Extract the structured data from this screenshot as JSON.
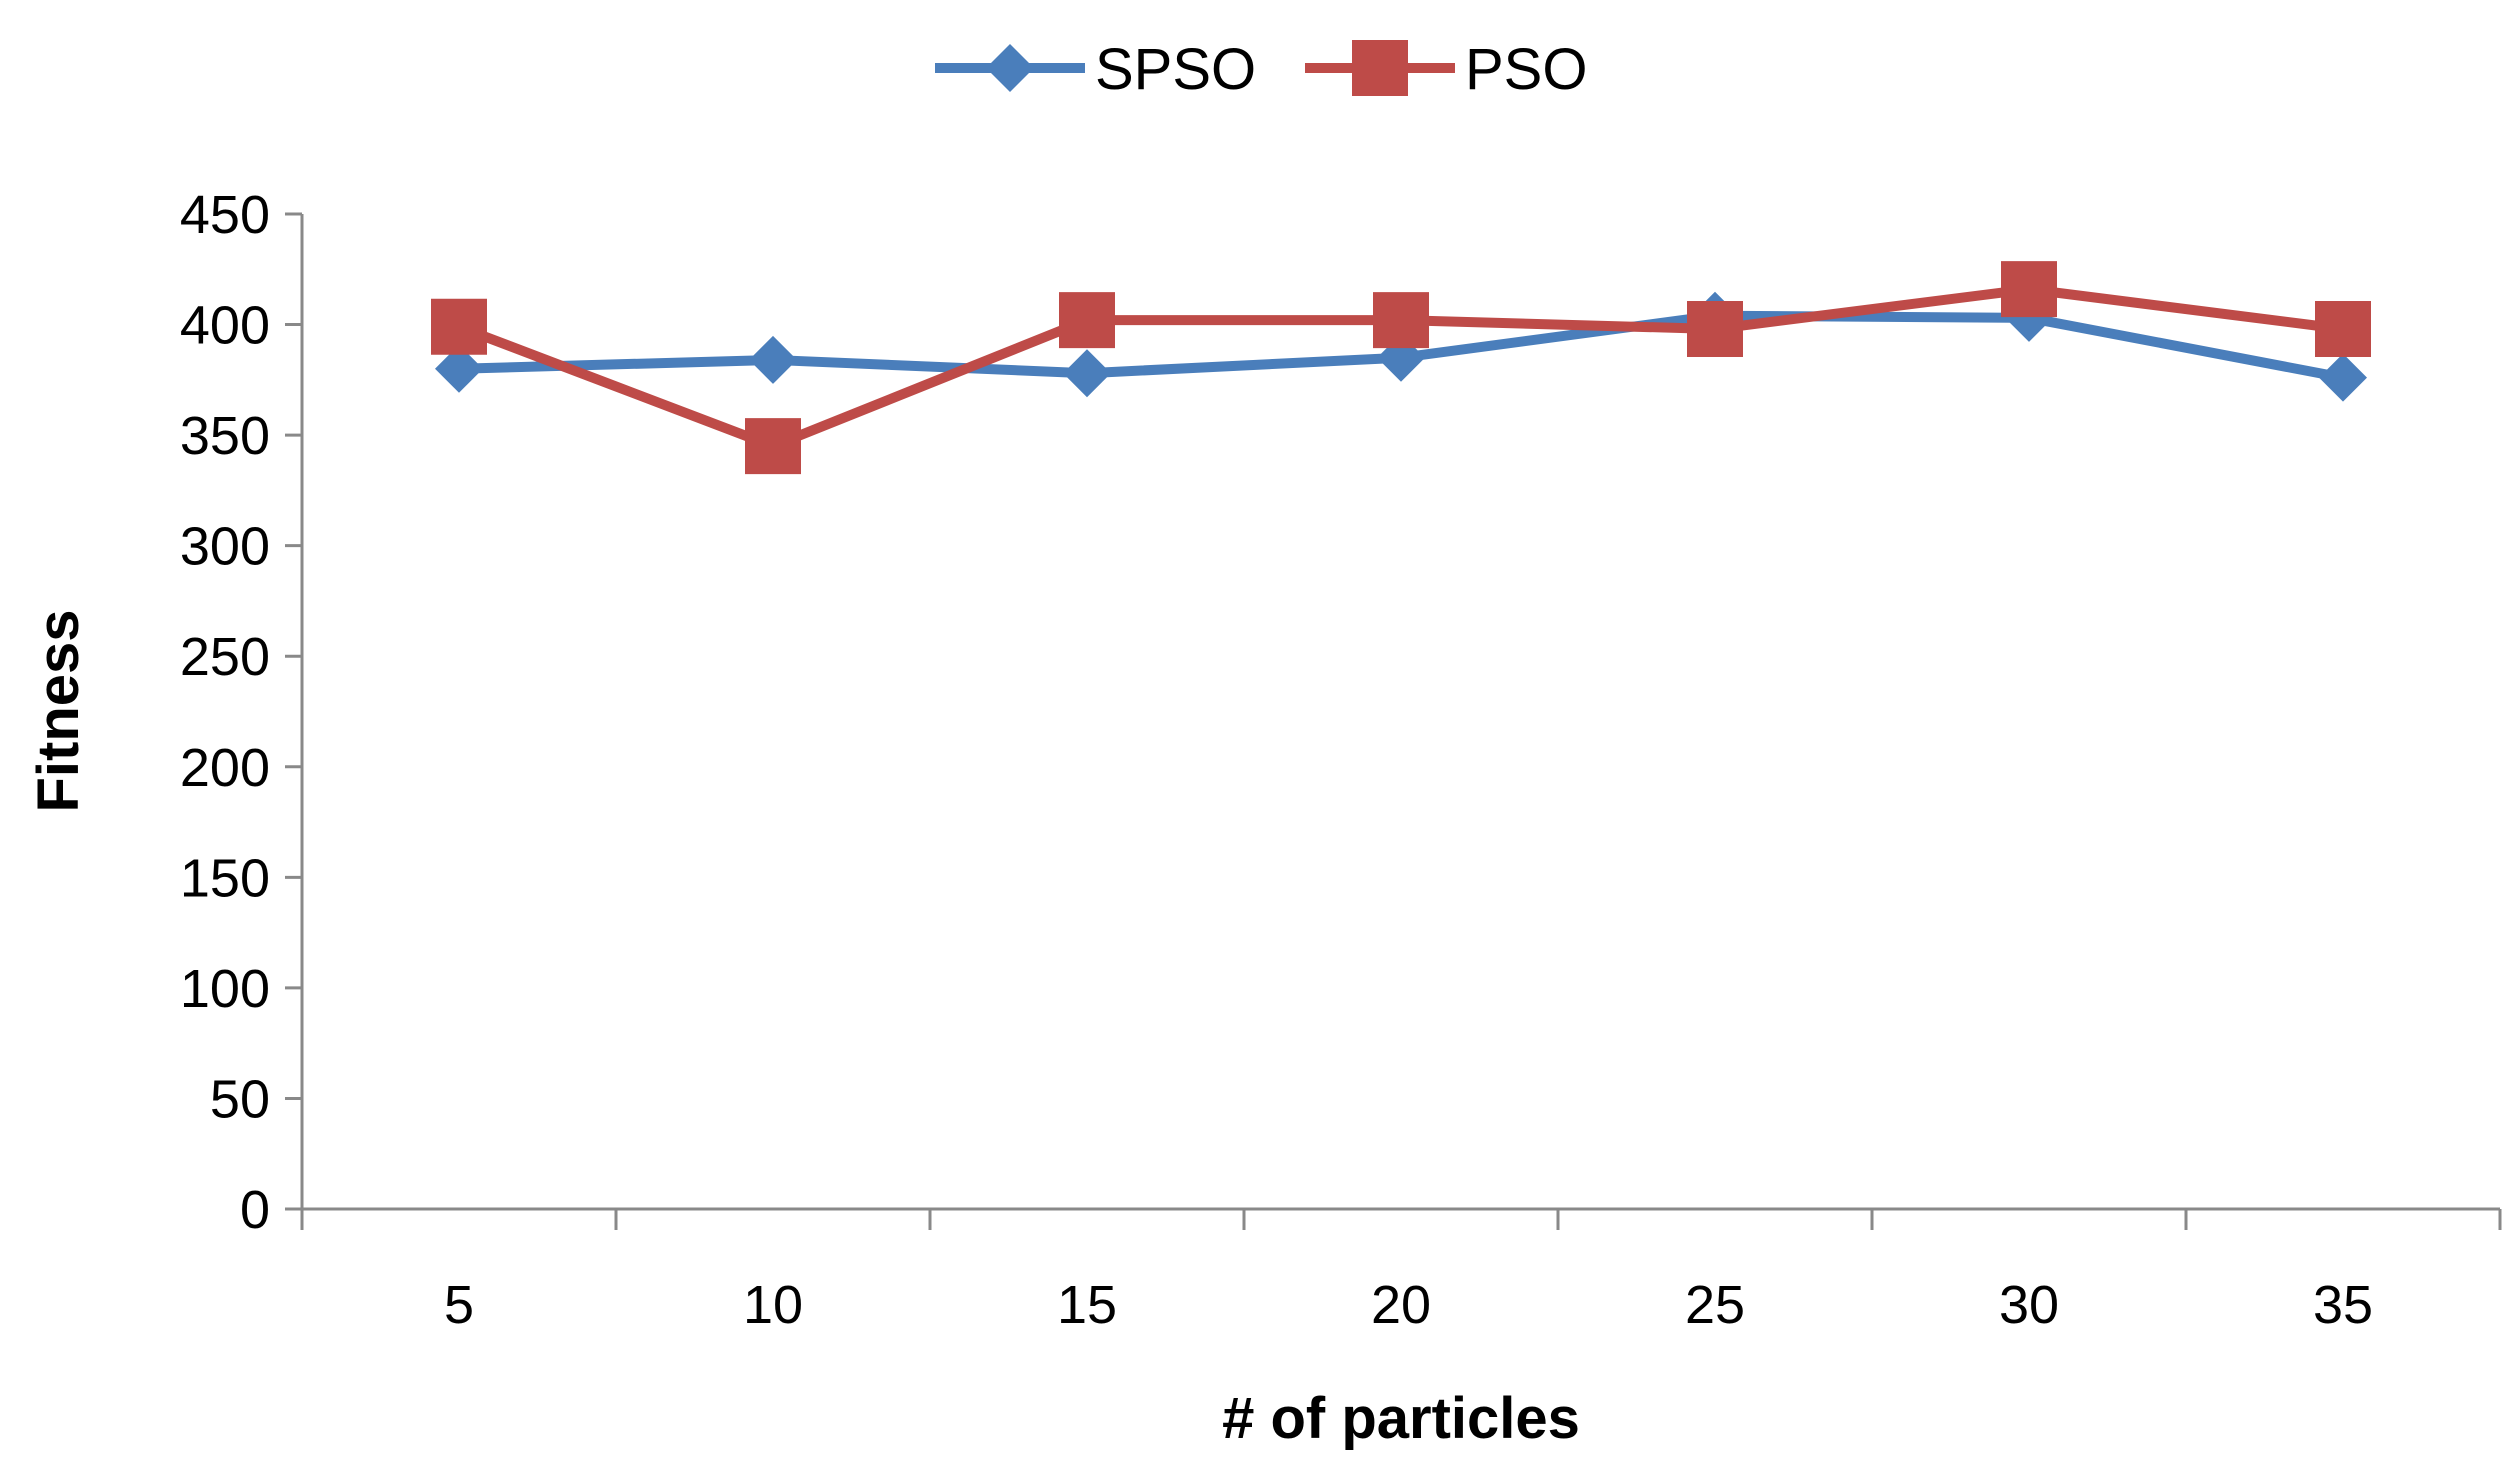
{
  "chart_data": {
    "type": "line",
    "title": "",
    "xlabel": "# of particles",
    "ylabel": "Fitness",
    "categories": [
      "5",
      "10",
      "15",
      "20",
      "25",
      "30",
      "35"
    ],
    "ylim": [
      0,
      450
    ],
    "yticks": [
      0,
      50,
      100,
      150,
      200,
      250,
      300,
      350,
      400,
      450
    ],
    "ytick_labels": [
      "0",
      "50",
      "100",
      "150",
      "200",
      "250",
      "300",
      "350",
      "400",
      "450"
    ],
    "grid": false,
    "legend_position": "top-center",
    "series": [
      {
        "name": "SPSO",
        "color": "#4a7ebb",
        "marker": "diamond",
        "values": [
          380,
          384,
          378,
          385,
          404,
          403,
          376
        ]
      },
      {
        "name": "PSO",
        "color": "#be4b48",
        "marker": "square",
        "values": [
          399,
          345,
          402,
          402,
          398,
          416,
          398
        ]
      }
    ]
  }
}
